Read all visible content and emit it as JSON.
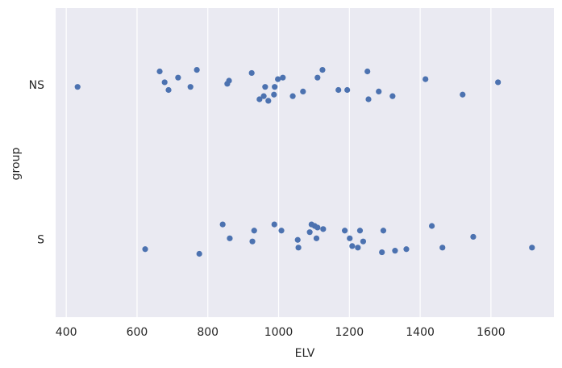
{
  "chart_data": {
    "type": "scatter",
    "xlabel": "ELV",
    "ylabel": "group",
    "color": "#4c72b0",
    "grid": "x",
    "xlim": [
      370,
      1778
    ],
    "xticks": [
      400,
      600,
      800,
      1000,
      1200,
      1400,
      1600
    ],
    "ylim": [
      1.5,
      -0.5
    ],
    "yticks": [
      {
        "value": 0,
        "label": "NS"
      },
      {
        "value": 1,
        "label": "S"
      }
    ],
    "x": [
      432,
      664,
      678,
      689,
      716,
      751,
      769,
      855,
      860,
      924,
      946,
      958,
      962,
      971,
      987,
      989,
      998,
      1012,
      1040,
      1069,
      1110,
      1124,
      1169,
      1194,
      1251,
      1254,
      1283,
      1322,
      1415,
      1520,
      1620,
      623,
      776,
      842,
      862,
      926,
      931,
      988,
      1008,
      1054,
      1056,
      1088,
      1093,
      1102,
      1107,
      1110,
      1126,
      1187,
      1201,
      1208,
      1224,
      1230,
      1239,
      1296,
      1292,
      1329,
      1361,
      1433,
      1463,
      1550,
      1716
    ],
    "y": [
      0.01,
      -0.09,
      -0.02,
      0.03,
      -0.05,
      0.01,
      -0.1,
      -0.01,
      -0.03,
      -0.08,
      0.09,
      0.07,
      0.01,
      0.1,
      0.06,
      0.01,
      -0.04,
      -0.05,
      0.07,
      0.04,
      -0.05,
      -0.1,
      0.03,
      0.03,
      -0.09,
      0.09,
      0.04,
      0.07,
      -0.04,
      0.06,
      -0.02,
      1.06,
      1.09,
      0.9,
      0.99,
      1.01,
      0.94,
      0.9,
      0.94,
      1.0,
      1.05,
      0.95,
      0.9,
      0.91,
      0.99,
      0.92,
      0.93,
      0.94,
      0.99,
      1.04,
      1.05,
      0.94,
      1.01,
      0.94,
      1.08,
      1.07,
      1.06,
      0.91,
      1.05,
      0.98,
      1.05
    ]
  }
}
